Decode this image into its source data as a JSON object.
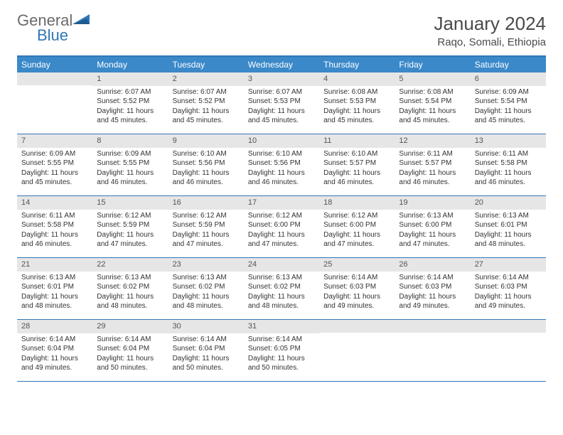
{
  "brand": {
    "part1": "General",
    "part2": "Blue"
  },
  "title": "January 2024",
  "location": "Raqo, Somali, Ethiopia",
  "weekdays": [
    "Sunday",
    "Monday",
    "Tuesday",
    "Wednesday",
    "Thursday",
    "Friday",
    "Saturday"
  ],
  "colors": {
    "header_bar": "#3b89c9",
    "border": "#2f77b6",
    "daynum_bg": "#e6e6e6",
    "text": "#333333",
    "logo_gray": "#6a6a6a",
    "logo_blue": "#2f77b6"
  },
  "weeks": [
    [
      {
        "n": "",
        "sr": "",
        "ss": "",
        "d1": "",
        "d2": ""
      },
      {
        "n": "1",
        "sr": "Sunrise: 6:07 AM",
        "ss": "Sunset: 5:52 PM",
        "d1": "Daylight: 11 hours",
        "d2": "and 45 minutes."
      },
      {
        "n": "2",
        "sr": "Sunrise: 6:07 AM",
        "ss": "Sunset: 5:52 PM",
        "d1": "Daylight: 11 hours",
        "d2": "and 45 minutes."
      },
      {
        "n": "3",
        "sr": "Sunrise: 6:07 AM",
        "ss": "Sunset: 5:53 PM",
        "d1": "Daylight: 11 hours",
        "d2": "and 45 minutes."
      },
      {
        "n": "4",
        "sr": "Sunrise: 6:08 AM",
        "ss": "Sunset: 5:53 PM",
        "d1": "Daylight: 11 hours",
        "d2": "and 45 minutes."
      },
      {
        "n": "5",
        "sr": "Sunrise: 6:08 AM",
        "ss": "Sunset: 5:54 PM",
        "d1": "Daylight: 11 hours",
        "d2": "and 45 minutes."
      },
      {
        "n": "6",
        "sr": "Sunrise: 6:09 AM",
        "ss": "Sunset: 5:54 PM",
        "d1": "Daylight: 11 hours",
        "d2": "and 45 minutes."
      }
    ],
    [
      {
        "n": "7",
        "sr": "Sunrise: 6:09 AM",
        "ss": "Sunset: 5:55 PM",
        "d1": "Daylight: 11 hours",
        "d2": "and 45 minutes."
      },
      {
        "n": "8",
        "sr": "Sunrise: 6:09 AM",
        "ss": "Sunset: 5:55 PM",
        "d1": "Daylight: 11 hours",
        "d2": "and 46 minutes."
      },
      {
        "n": "9",
        "sr": "Sunrise: 6:10 AM",
        "ss": "Sunset: 5:56 PM",
        "d1": "Daylight: 11 hours",
        "d2": "and 46 minutes."
      },
      {
        "n": "10",
        "sr": "Sunrise: 6:10 AM",
        "ss": "Sunset: 5:56 PM",
        "d1": "Daylight: 11 hours",
        "d2": "and 46 minutes."
      },
      {
        "n": "11",
        "sr": "Sunrise: 6:10 AM",
        "ss": "Sunset: 5:57 PM",
        "d1": "Daylight: 11 hours",
        "d2": "and 46 minutes."
      },
      {
        "n": "12",
        "sr": "Sunrise: 6:11 AM",
        "ss": "Sunset: 5:57 PM",
        "d1": "Daylight: 11 hours",
        "d2": "and 46 minutes."
      },
      {
        "n": "13",
        "sr": "Sunrise: 6:11 AM",
        "ss": "Sunset: 5:58 PM",
        "d1": "Daylight: 11 hours",
        "d2": "and 46 minutes."
      }
    ],
    [
      {
        "n": "14",
        "sr": "Sunrise: 6:11 AM",
        "ss": "Sunset: 5:58 PM",
        "d1": "Daylight: 11 hours",
        "d2": "and 46 minutes."
      },
      {
        "n": "15",
        "sr": "Sunrise: 6:12 AM",
        "ss": "Sunset: 5:59 PM",
        "d1": "Daylight: 11 hours",
        "d2": "and 47 minutes."
      },
      {
        "n": "16",
        "sr": "Sunrise: 6:12 AM",
        "ss": "Sunset: 5:59 PM",
        "d1": "Daylight: 11 hours",
        "d2": "and 47 minutes."
      },
      {
        "n": "17",
        "sr": "Sunrise: 6:12 AM",
        "ss": "Sunset: 6:00 PM",
        "d1": "Daylight: 11 hours",
        "d2": "and 47 minutes."
      },
      {
        "n": "18",
        "sr": "Sunrise: 6:12 AM",
        "ss": "Sunset: 6:00 PM",
        "d1": "Daylight: 11 hours",
        "d2": "and 47 minutes."
      },
      {
        "n": "19",
        "sr": "Sunrise: 6:13 AM",
        "ss": "Sunset: 6:00 PM",
        "d1": "Daylight: 11 hours",
        "d2": "and 47 minutes."
      },
      {
        "n": "20",
        "sr": "Sunrise: 6:13 AM",
        "ss": "Sunset: 6:01 PM",
        "d1": "Daylight: 11 hours",
        "d2": "and 48 minutes."
      }
    ],
    [
      {
        "n": "21",
        "sr": "Sunrise: 6:13 AM",
        "ss": "Sunset: 6:01 PM",
        "d1": "Daylight: 11 hours",
        "d2": "and 48 minutes."
      },
      {
        "n": "22",
        "sr": "Sunrise: 6:13 AM",
        "ss": "Sunset: 6:02 PM",
        "d1": "Daylight: 11 hours",
        "d2": "and 48 minutes."
      },
      {
        "n": "23",
        "sr": "Sunrise: 6:13 AM",
        "ss": "Sunset: 6:02 PM",
        "d1": "Daylight: 11 hours",
        "d2": "and 48 minutes."
      },
      {
        "n": "24",
        "sr": "Sunrise: 6:13 AM",
        "ss": "Sunset: 6:02 PM",
        "d1": "Daylight: 11 hours",
        "d2": "and 48 minutes."
      },
      {
        "n": "25",
        "sr": "Sunrise: 6:14 AM",
        "ss": "Sunset: 6:03 PM",
        "d1": "Daylight: 11 hours",
        "d2": "and 49 minutes."
      },
      {
        "n": "26",
        "sr": "Sunrise: 6:14 AM",
        "ss": "Sunset: 6:03 PM",
        "d1": "Daylight: 11 hours",
        "d2": "and 49 minutes."
      },
      {
        "n": "27",
        "sr": "Sunrise: 6:14 AM",
        "ss": "Sunset: 6:03 PM",
        "d1": "Daylight: 11 hours",
        "d2": "and 49 minutes."
      }
    ],
    [
      {
        "n": "28",
        "sr": "Sunrise: 6:14 AM",
        "ss": "Sunset: 6:04 PM",
        "d1": "Daylight: 11 hours",
        "d2": "and 49 minutes."
      },
      {
        "n": "29",
        "sr": "Sunrise: 6:14 AM",
        "ss": "Sunset: 6:04 PM",
        "d1": "Daylight: 11 hours",
        "d2": "and 50 minutes."
      },
      {
        "n": "30",
        "sr": "Sunrise: 6:14 AM",
        "ss": "Sunset: 6:04 PM",
        "d1": "Daylight: 11 hours",
        "d2": "and 50 minutes."
      },
      {
        "n": "31",
        "sr": "Sunrise: 6:14 AM",
        "ss": "Sunset: 6:05 PM",
        "d1": "Daylight: 11 hours",
        "d2": "and 50 minutes."
      },
      {
        "n": "",
        "sr": "",
        "ss": "",
        "d1": "",
        "d2": ""
      },
      {
        "n": "",
        "sr": "",
        "ss": "",
        "d1": "",
        "d2": ""
      },
      {
        "n": "",
        "sr": "",
        "ss": "",
        "d1": "",
        "d2": ""
      }
    ]
  ]
}
